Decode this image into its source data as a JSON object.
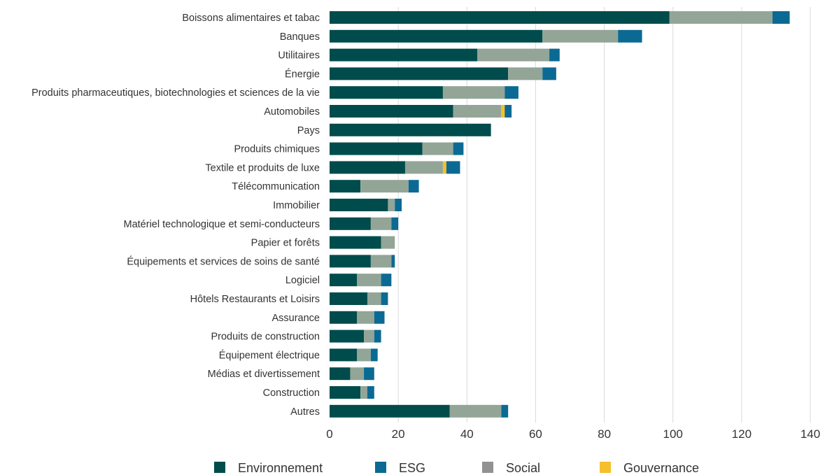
{
  "chart_data": {
    "type": "bar",
    "orientation": "horizontal",
    "stacked": true,
    "categories": [
      "Boissons alimentaires et tabac",
      "Banques",
      "Utilitaires",
      "Énergie",
      "Produits pharmaceutiques, biotechnologies et sciences de la vie",
      "Automobiles",
      "Pays",
      "Produits chimiques",
      "Textile et produits de luxe",
      "Télécommunication",
      "Immobilier",
      "Matériel technologique et semi-conducteurs",
      "Papier et forêts",
      "Équipements et services de soins de santé",
      "Logiciel",
      "Hôtels Restaurants et Loisirs",
      "Assurance",
      "Produits de construction",
      "Équipement électrique",
      "Médias et divertissement",
      "Construction",
      "Autres"
    ],
    "series": [
      {
        "name": "Environnement",
        "color": "#004c4c",
        "values": [
          99,
          62,
          43,
          52,
          33,
          36,
          47,
          27,
          22,
          9,
          17,
          12,
          15,
          12,
          8,
          11,
          8,
          10,
          8,
          6,
          9,
          35
        ]
      },
      {
        "name": "Social",
        "color": "#93a597",
        "values": [
          30,
          22,
          21,
          10,
          18,
          14,
          0,
          9,
          11,
          14,
          2,
          6,
          4,
          6,
          7,
          4,
          5,
          3,
          4,
          4,
          2,
          15
        ]
      },
      {
        "name": "Gouvernance",
        "color": "#f5c02c",
        "values": [
          0,
          0,
          0,
          0,
          0,
          1,
          0,
          0,
          1,
          0,
          0,
          0,
          0,
          0,
          0,
          0,
          0,
          0,
          0,
          0,
          0,
          0
        ]
      },
      {
        "name": "ESG",
        "color": "#0b6a93",
        "values": [
          5,
          7,
          3,
          4,
          4,
          2,
          0,
          3,
          4,
          3,
          2,
          2,
          0,
          1,
          3,
          2,
          3,
          2,
          2,
          3,
          2,
          2
        ]
      }
    ],
    "xlim": [
      0,
      140
    ],
    "xticks": [
      0,
      20,
      40,
      60,
      80,
      100,
      120,
      140
    ],
    "grid": true,
    "legend": {
      "placement": "bottom",
      "entries": [
        {
          "name": "Environnement",
          "color": "#004c4c"
        },
        {
          "name": "ESG",
          "color": "#0b6a93"
        },
        {
          "name": "Social",
          "color": "#919191"
        },
        {
          "name": "Gouvernance",
          "color": "#f5c02c"
        }
      ]
    }
  }
}
